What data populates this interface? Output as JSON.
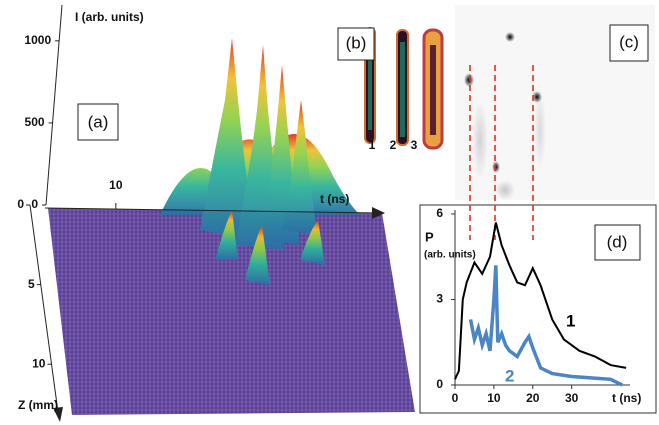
{
  "chart_data": [
    {
      "type": "surface",
      "panel_label": "(a)",
      "z_label": "I (arb. units)",
      "x_label": "t (ns)",
      "y_label": "Z (mm)",
      "zlim": [
        0,
        1200
      ],
      "zticks": [
        0,
        500,
        1000
      ],
      "xlim": [
        0,
        48
      ],
      "xticks": [
        10
      ],
      "ylim": [
        0,
        13
      ],
      "yticks": [
        0,
        5,
        10
      ]
    },
    {
      "type": "image",
      "panel_label": "(b)",
      "labels": [
        "1",
        "2",
        "3"
      ]
    },
    {
      "type": "image",
      "panel_label": "(c)"
    },
    {
      "type": "line",
      "panel_label": "(d)",
      "y_label": "P",
      "y_unit": "(arb. units)",
      "x_label": "t (ns)",
      "xlim": [
        0,
        45
      ],
      "xticks": [
        0,
        10,
        20,
        30
      ],
      "ylim": [
        0,
        6
      ],
      "yticks": [
        0,
        3,
        6
      ],
      "series": [
        {
          "name": "1",
          "color": "#000000",
          "x": [
            0,
            1,
            2,
            3,
            5,
            7,
            9,
            10.5,
            12,
            14,
            16,
            18,
            20,
            22,
            25,
            28,
            32,
            36,
            40,
            44
          ],
          "values": [
            0.2,
            0.5,
            3.0,
            3.6,
            4.3,
            3.9,
            4.5,
            5.7,
            4.9,
            4.2,
            3.6,
            3.5,
            4.1,
            3.5,
            2.3,
            1.6,
            1.2,
            1.0,
            0.7,
            0.6
          ]
        },
        {
          "name": "2",
          "color": "#4a86c5",
          "x": [
            4,
            5,
            6,
            7,
            8,
            9,
            10,
            10.5,
            11,
            12,
            13,
            14,
            16,
            18,
            19,
            20,
            22,
            25,
            30,
            35,
            40,
            43
          ],
          "values": [
            2.3,
            1.6,
            2.0,
            1.4,
            1.8,
            1.2,
            3.0,
            4.2,
            1.5,
            1.8,
            1.4,
            1.2,
            1.0,
            1.5,
            1.7,
            1.3,
            0.6,
            0.4,
            0.3,
            0.25,
            0.2,
            0.0
          ]
        }
      ]
    }
  ]
}
